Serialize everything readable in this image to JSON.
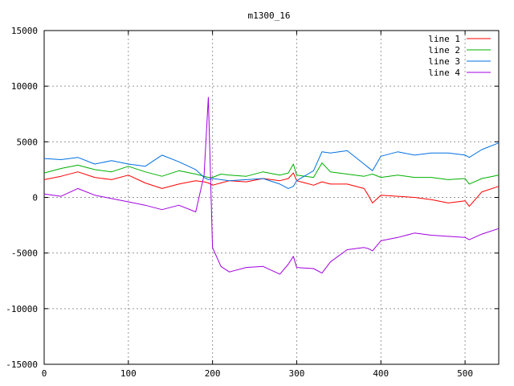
{
  "chart_data": {
    "type": "line",
    "title": "m1300_16",
    "xlabel": "",
    "ylabel": "",
    "xlim": [
      0,
      540
    ],
    "ylim": [
      -15000,
      15000
    ],
    "grid": true,
    "legend_position": "top-right",
    "x_ticks": [
      0,
      100,
      200,
      300,
      400,
      500
    ],
    "y_ticks": [
      -15000,
      -10000,
      -5000,
      0,
      5000,
      10000,
      15000
    ],
    "x": [
      0,
      20,
      40,
      60,
      80,
      100,
      120,
      140,
      160,
      180,
      190,
      195,
      200,
      210,
      220,
      240,
      260,
      280,
      290,
      296,
      300,
      320,
      330,
      340,
      360,
      380,
      385,
      390,
      400,
      420,
      440,
      460,
      480,
      500,
      505,
      520,
      540
    ],
    "series": [
      {
        "name": "line 1",
        "color": "#ff0000",
        "values": [
          1600,
          1900,
          2300,
          1800,
          1600,
          2000,
          1300,
          800,
          1200,
          1500,
          1400,
          1300,
          1100,
          1300,
          1500,
          1400,
          1700,
          1500,
          1700,
          2200,
          1500,
          1100,
          1400,
          1200,
          1200,
          800,
          200,
          -500,
          200,
          100,
          0,
          -200,
          -500,
          -300,
          -800,
          500,
          1000
        ]
      },
      {
        "name": "line 2",
        "color": "#00b000",
        "values": [
          2200,
          2600,
          2900,
          2500,
          2300,
          2800,
          2300,
          1900,
          2400,
          2100,
          1900,
          1800,
          1800,
          2100,
          2000,
          1900,
          2300,
          2000,
          2200,
          3000,
          2000,
          1800,
          3100,
          2300,
          2100,
          1900,
          2000,
          2100,
          1800,
          2000,
          1800,
          1800,
          1600,
          1700,
          1200,
          1700,
          2000
        ]
      },
      {
        "name": "line 3",
        "color": "#0070e0",
        "values": [
          3500,
          3400,
          3600,
          3000,
          3300,
          3000,
          2800,
          3800,
          3200,
          2500,
          1800,
          1600,
          1700,
          1600,
          1500,
          1600,
          1700,
          1200,
          800,
          1000,
          1500,
          2400,
          4100,
          4000,
          4200,
          3000,
          2700,
          2400,
          3700,
          4100,
          3800,
          4000,
          4000,
          3800,
          3600,
          4300,
          4900
        ]
      },
      {
        "name": "line 4",
        "color": "#a000e0",
        "values": [
          300,
          100,
          800,
          200,
          -100,
          -400,
          -700,
          -1100,
          -700,
          -1300,
          2000,
          9000,
          -4500,
          -6200,
          -6700,
          -6300,
          -6200,
          -6900,
          -6000,
          -5300,
          -6300,
          -6400,
          -6800,
          -5800,
          -4700,
          -4500,
          -4600,
          -4800,
          -3900,
          -3600,
          -3200,
          -3400,
          -3500,
          -3600,
          -3800,
          -3300,
          -2800
        ]
      }
    ]
  }
}
